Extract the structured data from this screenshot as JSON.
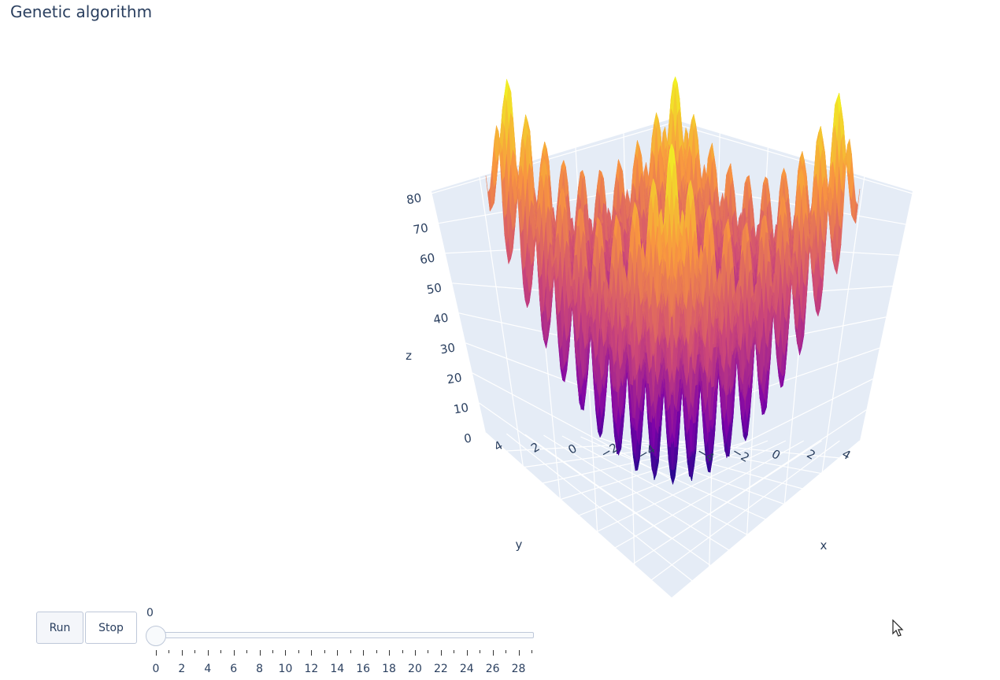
{
  "title": "Genetic algorithm",
  "controls": {
    "run_label": "Run",
    "stop_label": "Stop"
  },
  "slider": {
    "current_label": "0",
    "value": 0,
    "min": 0,
    "max": 29,
    "tick_labels": [
      "0",
      "2",
      "4",
      "6",
      "8",
      "10",
      "12",
      "14",
      "16",
      "18",
      "20",
      "22",
      "24",
      "26",
      "28"
    ]
  },
  "chart_data": {
    "type": "surface",
    "function": "rastrigin",
    "xlabel": "x",
    "ylabel": "y",
    "zlabel": "z",
    "x_ticks": [
      "−4",
      "−2",
      "0",
      "2",
      "4"
    ],
    "y_ticks": [
      "−4",
      "−2",
      "0",
      "2",
      "4"
    ],
    "z_ticks": [
      "0",
      "10",
      "20",
      "30",
      "40",
      "50",
      "60",
      "70",
      "80"
    ],
    "xlim": [
      -5.12,
      5.12
    ],
    "ylim": [
      -5.12,
      5.12
    ],
    "zlim": [
      0,
      80.7
    ],
    "colorscale": "plasma",
    "colors": {
      "low": "#0d0887",
      "mid": "#cc4778",
      "high": "#f0f921",
      "pane": "#e5ecf6",
      "grid": "#ffffff"
    }
  }
}
